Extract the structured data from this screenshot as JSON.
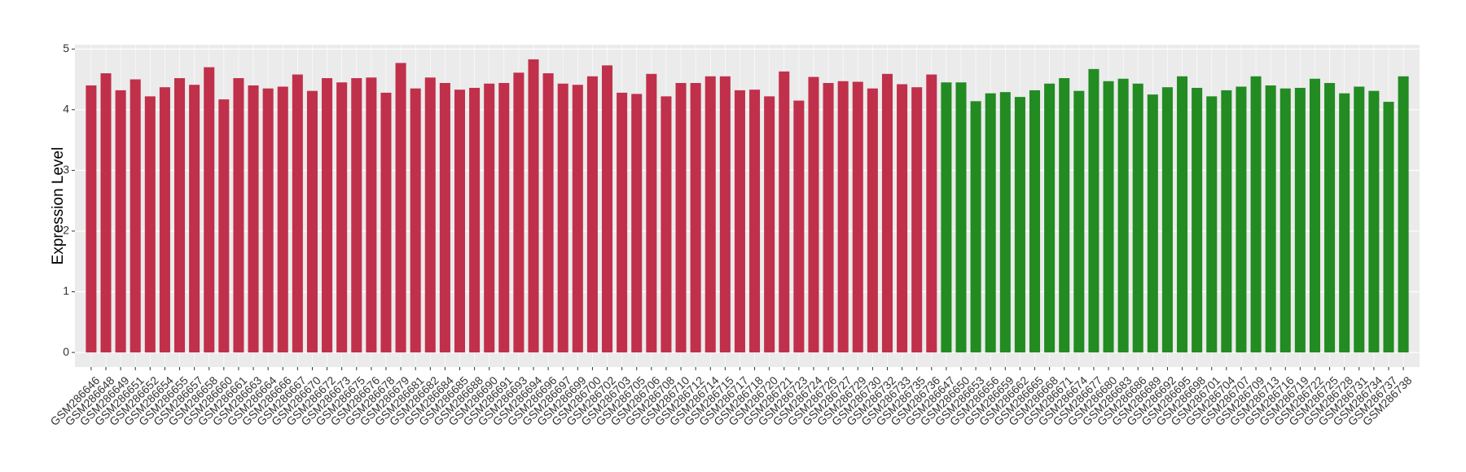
{
  "chart_data": {
    "type": "bar",
    "y_label": "Expression Level",
    "categories": [
      "GSM286646",
      "GSM286648",
      "GSM286649",
      "GSM286651",
      "GSM286652",
      "GSM286654",
      "GSM286655",
      "GSM286657",
      "GSM286658",
      "GSM286660",
      "GSM286661",
      "GSM286663",
      "GSM286664",
      "GSM286666",
      "GSM286667",
      "GSM286670",
      "GSM286672",
      "GSM286673",
      "GSM286675",
      "GSM286676",
      "GSM286678",
      "GSM286679",
      "GSM286681",
      "GSM286682",
      "GSM286684",
      "GSM286685",
      "GSM286688",
      "GSM286690",
      "GSM286691",
      "GSM286693",
      "GSM286694",
      "GSM286696",
      "GSM286697",
      "GSM286699",
      "GSM286700",
      "GSM286702",
      "GSM286703",
      "GSM286705",
      "GSM286706",
      "GSM286708",
      "GSM286710",
      "GSM286712",
      "GSM286714",
      "GSM286715",
      "GSM286717",
      "GSM286718",
      "GSM286720",
      "GSM286721",
      "GSM286723",
      "GSM286724",
      "GSM286726",
      "GSM286727",
      "GSM286729",
      "GSM286730",
      "GSM286732",
      "GSM286733",
      "GSM286735",
      "GSM286736",
      "GSM286647",
      "GSM286650",
      "GSM286653",
      "GSM286656",
      "GSM286659",
      "GSM286662",
      "GSM286665",
      "GSM286668",
      "GSM286671",
      "GSM286674",
      "GSM286677",
      "GSM286680",
      "GSM286683",
      "GSM286686",
      "GSM286689",
      "GSM286692",
      "GSM286695",
      "GSM286698",
      "GSM286701",
      "GSM286704",
      "GSM286707",
      "GSM286709",
      "GSM286713",
      "GSM286716",
      "GSM286719",
      "GSM286722",
      "GSM286725",
      "GSM286728",
      "GSM286731",
      "GSM286734",
      "GSM286737",
      "GSM286738"
    ],
    "values": [
      4.4,
      4.6,
      4.32,
      4.5,
      4.22,
      4.37,
      4.52,
      4.41,
      4.7,
      4.17,
      4.52,
      4.4,
      4.35,
      4.38,
      4.58,
      4.31,
      4.52,
      4.45,
      4.52,
      4.53,
      4.28,
      4.77,
      4.35,
      4.53,
      4.44,
      4.33,
      4.36,
      4.43,
      4.44,
      4.61,
      4.83,
      4.6,
      4.43,
      4.41,
      4.55,
      4.73,
      4.28,
      4.26,
      4.59,
      4.22,
      4.44,
      4.44,
      4.55,
      4.55,
      4.32,
      4.33,
      4.22,
      4.63,
      4.15,
      4.54,
      4.44,
      4.47,
      4.46,
      4.35,
      4.59,
      4.42,
      4.37,
      4.58,
      4.45,
      4.45,
      4.14,
      4.27,
      4.29,
      4.21,
      4.32,
      4.43,
      4.52,
      4.31,
      4.67,
      4.47,
      4.51,
      4.43,
      4.25,
      4.37,
      4.55,
      4.36,
      4.22,
      4.32,
      4.38,
      4.55,
      4.4,
      4.35,
      4.36,
      4.51,
      4.44,
      4.27,
      4.38,
      4.31,
      4.13,
      4.55
    ],
    "colors": [
      "#c0304a",
      "#c0304a",
      "#c0304a",
      "#c0304a",
      "#c0304a",
      "#c0304a",
      "#c0304a",
      "#c0304a",
      "#c0304a",
      "#c0304a",
      "#c0304a",
      "#c0304a",
      "#c0304a",
      "#c0304a",
      "#c0304a",
      "#c0304a",
      "#c0304a",
      "#c0304a",
      "#c0304a",
      "#c0304a",
      "#c0304a",
      "#c0304a",
      "#c0304a",
      "#c0304a",
      "#c0304a",
      "#c0304a",
      "#c0304a",
      "#c0304a",
      "#c0304a",
      "#c0304a",
      "#c0304a",
      "#c0304a",
      "#c0304a",
      "#c0304a",
      "#c0304a",
      "#c0304a",
      "#c0304a",
      "#c0304a",
      "#c0304a",
      "#c0304a",
      "#c0304a",
      "#c0304a",
      "#c0304a",
      "#c0304a",
      "#c0304a",
      "#c0304a",
      "#c0304a",
      "#c0304a",
      "#c0304a",
      "#c0304a",
      "#c0304a",
      "#c0304a",
      "#c0304a",
      "#c0304a",
      "#c0304a",
      "#c0304a",
      "#c0304a",
      "#c0304a",
      "#228b22",
      "#228b22",
      "#228b22",
      "#228b22",
      "#228b22",
      "#228b22",
      "#228b22",
      "#228b22",
      "#228b22",
      "#228b22",
      "#228b22",
      "#228b22",
      "#228b22",
      "#228b22",
      "#228b22",
      "#228b22",
      "#228b22",
      "#228b22",
      "#228b22",
      "#228b22",
      "#228b22",
      "#228b22",
      "#228b22",
      "#228b22",
      "#228b22",
      "#228b22",
      "#228b22",
      "#228b22",
      "#228b22",
      "#228b22",
      "#228b22",
      "#228b22"
    ],
    "ylim": [
      -0.24,
      5.07
    ],
    "yticks": [
      0,
      1,
      2,
      3,
      4,
      5
    ],
    "grid": true
  }
}
